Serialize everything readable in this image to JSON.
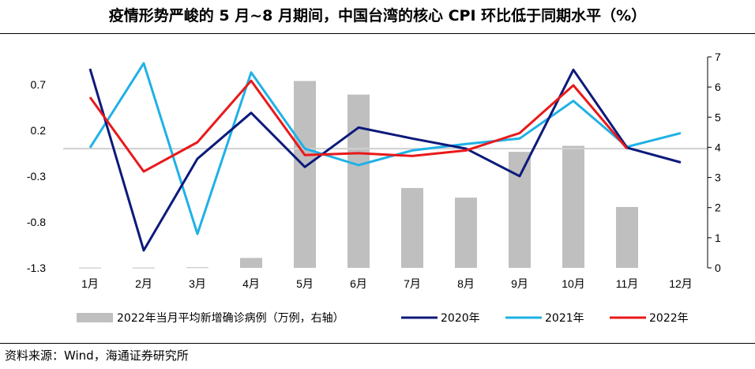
{
  "title": "疫情形势严峻的 5 月~8 月期间，中国台湾的核心 CPI 环比低于同期水平（%）",
  "source": "资料来源：Wind，海通证券研究所",
  "chart_data": {
    "type": "bar+line",
    "categories": [
      "1月",
      "2月",
      "3月",
      "4月",
      "5月",
      "6月",
      "7月",
      "8月",
      "9月",
      "10月",
      "11月",
      "12月"
    ],
    "left_axis": {
      "min": -1.3,
      "max": 1.0,
      "ticks": [
        "-1.3",
        "-0.8",
        "-0.3",
        "0.2",
        "0.7"
      ],
      "tick_values": [
        -1.3,
        -0.8,
        -0.3,
        0.2,
        0.7
      ]
    },
    "right_axis": {
      "min": 0,
      "max": 7,
      "ticks": [
        "0",
        "1",
        "2",
        "3",
        "4",
        "5",
        "6",
        "7"
      ],
      "tick_values": [
        0,
        1,
        2,
        3,
        4,
        5,
        6,
        7
      ]
    },
    "reference_line": 0,
    "bars": {
      "name": "2022年当月平均新增确诊病例（万例，右轴）",
      "color": "#bfbfbf",
      "axis": "right",
      "values": [
        0.01,
        0.01,
        0.02,
        0.33,
        6.2,
        5.75,
        2.65,
        2.33,
        3.85,
        4.05,
        2.02,
        null
      ]
    },
    "series": [
      {
        "name": "2020年",
        "color": "#0c1a7a",
        "axis": "left",
        "values": [
          0.87,
          -1.11,
          -0.11,
          0.39,
          -0.2,
          0.23,
          0.11,
          0.0,
          -0.3,
          0.86,
          0.01,
          -0.15
        ]
      },
      {
        "name": "2021年",
        "color": "#1fb1e6",
        "axis": "left",
        "values": [
          0.01,
          0.93,
          -0.93,
          0.83,
          0.0,
          -0.18,
          -0.02,
          0.05,
          0.11,
          0.52,
          0.02,
          0.17
        ]
      },
      {
        "name": "2022年",
        "color": "#e8191b",
        "axis": "left",
        "values": [
          0.56,
          -0.25,
          0.07,
          0.74,
          -0.07,
          -0.05,
          -0.08,
          -0.02,
          0.17,
          0.69,
          0.0,
          null
        ]
      }
    ],
    "legend": [
      "2022年当月平均新增确诊病例（万例，右轴）",
      "2020年",
      "2021年",
      "2022年"
    ],
    "legend_position": "bottom"
  }
}
